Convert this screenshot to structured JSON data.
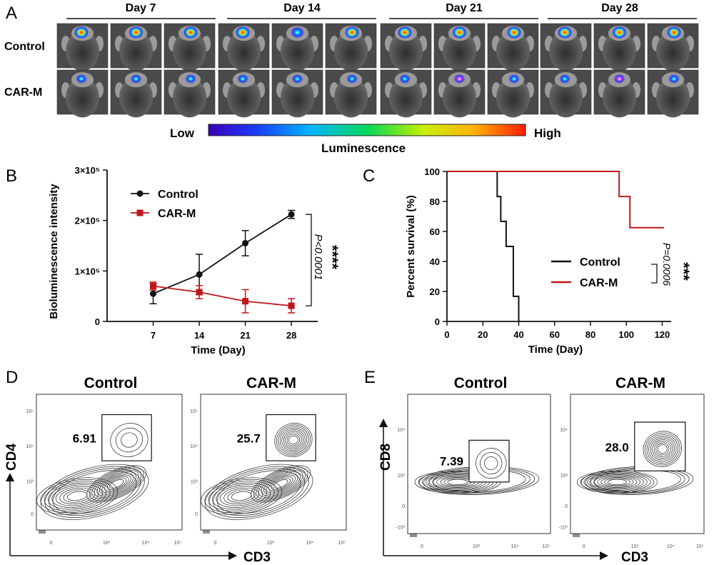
{
  "panel_letters": {
    "a": "A",
    "b": "B",
    "c": "C",
    "d": "D",
    "e": "E"
  },
  "panel_a": {
    "days": [
      "Day 7",
      "Day 14",
      "Day 21",
      "Day 28"
    ],
    "rows": [
      "Control",
      "CAR-M"
    ],
    "scale_low": "Low",
    "scale_high": "High",
    "scale_label": "Luminescence"
  },
  "chart_data": [
    {
      "type": "line",
      "panel": "B",
      "xlabel": "Time (Day)",
      "ylabel": "Bioluminescence intensity",
      "x": [
        7,
        14,
        21,
        28
      ],
      "xticks": [
        "7",
        "14",
        "21",
        "28"
      ],
      "yticks": [
        "0",
        "1×10⁵",
        "2×10⁵",
        "3×10⁵"
      ],
      "ylim": [
        0,
        300000
      ],
      "series": [
        {
          "name": "Control",
          "color": "#111111",
          "marker": "circle",
          "values": [
            55000,
            93000,
            155000,
            212000
          ],
          "errors": [
            20000,
            40000,
            25000,
            8000
          ]
        },
        {
          "name": "CAR-M",
          "color": "#c0151b",
          "marker": "square",
          "values": [
            70000,
            58000,
            40000,
            31000
          ],
          "errors": [
            8000,
            13000,
            23000,
            14000
          ]
        }
      ],
      "annotation_stars": "****",
      "annotation_p": "P<0.0001",
      "legend": "top-left"
    },
    {
      "type": "line",
      "panel": "C",
      "step": true,
      "xlabel": "Time (Day)",
      "ylabel": "Percent survival (%)",
      "xticks": [
        "0",
        "20",
        "40",
        "60",
        "80",
        "100",
        "120"
      ],
      "yticks": [
        "0",
        "20",
        "40",
        "60",
        "80",
        "100"
      ],
      "xlim": [
        0,
        125
      ],
      "ylim": [
        0,
        100
      ],
      "series": [
        {
          "name": "Control",
          "color": "#111111",
          "points": [
            [
              0,
              100
            ],
            [
              28,
              100
            ],
            [
              28,
              83.3
            ],
            [
              30,
              83.3
            ],
            [
              30,
              66.7
            ],
            [
              33,
              66.7
            ],
            [
              33,
              50
            ],
            [
              37,
              50
            ],
            [
              37,
              16.7
            ],
            [
              40,
              16.7
            ],
            [
              40,
              0
            ],
            [
              41,
              0
            ]
          ]
        },
        {
          "name": "CAR-M",
          "color": "#c0151b",
          "points": [
            [
              0,
              100
            ],
            [
              96,
              100
            ],
            [
              96,
              83.3
            ],
            [
              102,
              83.3
            ],
            [
              102,
              62.5
            ],
            [
              121,
              62.5
            ]
          ]
        }
      ],
      "annotation_stars": "***",
      "annotation_p": "P=0.0006",
      "legend": "center-right"
    }
  ],
  "panel_d": {
    "titles": [
      "Control",
      "CAR-M"
    ],
    "gate_values": [
      "6.91",
      "25.7"
    ],
    "y_axis": "CD4",
    "x_axis": "CD3"
  },
  "panel_e": {
    "titles": [
      "Control",
      "CAR-M"
    ],
    "gate_values": [
      "7.39",
      "28.0"
    ],
    "y_axis": "CD8",
    "x_axis": "CD3"
  },
  "flow_ticks": {
    "d_y": [
      "10⁵",
      "10⁴",
      "10³",
      "0"
    ],
    "e_y": [
      "10⁴",
      "10³",
      "0",
      "-10³"
    ],
    "x": [
      "0",
      "10³",
      "10⁴",
      "10⁵"
    ]
  }
}
